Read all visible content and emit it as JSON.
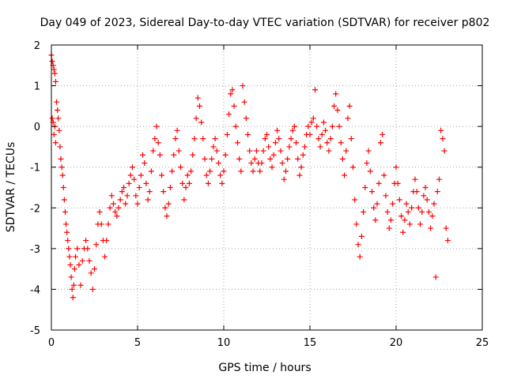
{
  "chart_data": {
    "type": "scatter",
    "title": "Day 049 of 2023, Sidereal Day-to-day VTEC variation (SDTVAR) for receiver p802",
    "xlabel": "GPS time / hours",
    "ylabel": "SDTVAR / TECUs",
    "xlim": [
      0,
      25
    ],
    "ylim": [
      -5,
      2
    ],
    "xticks": [
      0,
      5,
      10,
      15,
      20,
      25
    ],
    "yticks": [
      -5,
      -4,
      -3,
      -2,
      -1,
      0,
      1,
      2
    ],
    "xtick_labels": [
      "0",
      "5",
      "10",
      "15",
      "20",
      "25"
    ],
    "ytick_labels": [
      "-5",
      "-4",
      "-3",
      "-2",
      "-1",
      "0",
      "1",
      "2"
    ],
    "grid": true,
    "marker": "+",
    "colors": {
      "series": "#ff0000",
      "axes": "#000000",
      "grid": "#a0a0a0",
      "background": "#ffffff"
    },
    "series": [
      {
        "name": "SDTVAR",
        "points": [
          [
            0.0,
            1.75
          ],
          [
            0.05,
            1.6
          ],
          [
            0.1,
            1.5
          ],
          [
            0.15,
            1.4
          ],
          [
            0.2,
            1.3
          ],
          [
            0.25,
            1.1
          ],
          [
            0.05,
            0.2
          ],
          [
            0.1,
            0.1
          ],
          [
            0.15,
            -0.2
          ],
          [
            0.2,
            0.0
          ],
          [
            0.25,
            -0.4
          ],
          [
            0.3,
            0.6
          ],
          [
            0.35,
            0.4
          ],
          [
            0.4,
            0.2
          ],
          [
            0.45,
            -0.1
          ],
          [
            0.5,
            -0.5
          ],
          [
            0.55,
            -0.8
          ],
          [
            0.6,
            -1.0
          ],
          [
            0.65,
            -1.2
          ],
          [
            0.7,
            -1.5
          ],
          [
            0.75,
            -1.8
          ],
          [
            0.8,
            -2.1
          ],
          [
            0.85,
            -2.4
          ],
          [
            0.9,
            -2.6
          ],
          [
            0.95,
            -2.8
          ],
          [
            1.0,
            -3.0
          ],
          [
            1.05,
            -3.2
          ],
          [
            1.1,
            -3.4
          ],
          [
            1.15,
            -3.7
          ],
          [
            1.2,
            -4.0
          ],
          [
            1.25,
            -4.2
          ],
          [
            1.3,
            -3.9
          ],
          [
            1.35,
            -3.5
          ],
          [
            1.4,
            -3.2
          ],
          [
            1.5,
            -3.0
          ],
          [
            1.6,
            -3.4
          ],
          [
            1.7,
            -3.9
          ],
          [
            1.8,
            -3.3
          ],
          [
            1.9,
            -3.0
          ],
          [
            2.0,
            -2.8
          ],
          [
            2.1,
            -3.0
          ],
          [
            2.2,
            -3.3
          ],
          [
            2.3,
            -3.6
          ],
          [
            2.4,
            -4.0
          ],
          [
            2.5,
            -3.5
          ],
          [
            2.6,
            -2.9
          ],
          [
            2.7,
            -2.4
          ],
          [
            2.8,
            -2.1
          ],
          [
            2.9,
            -2.4
          ],
          [
            3.0,
            -2.8
          ],
          [
            3.1,
            -3.2
          ],
          [
            3.2,
            -2.8
          ],
          [
            3.3,
            -2.4
          ],
          [
            3.4,
            -2.0
          ],
          [
            3.5,
            -1.7
          ],
          [
            3.6,
            -1.9
          ],
          [
            3.7,
            -2.1
          ],
          [
            3.8,
            -2.2
          ],
          [
            3.9,
            -2.0
          ],
          [
            4.0,
            -1.8
          ],
          [
            4.1,
            -1.6
          ],
          [
            4.2,
            -1.5
          ],
          [
            4.3,
            -1.9
          ],
          [
            4.4,
            -1.7
          ],
          [
            4.5,
            -1.4
          ],
          [
            4.6,
            -1.2
          ],
          [
            4.7,
            -1.0
          ],
          [
            4.8,
            -1.3
          ],
          [
            4.9,
            -1.7
          ],
          [
            5.0,
            -1.9
          ],
          [
            5.1,
            -1.5
          ],
          [
            5.2,
            -1.2
          ],
          [
            5.3,
            -0.7
          ],
          [
            5.4,
            -0.9
          ],
          [
            5.5,
            -1.4
          ],
          [
            5.6,
            -1.8
          ],
          [
            5.7,
            -1.6
          ],
          [
            5.8,
            -1.1
          ],
          [
            5.9,
            -0.6
          ],
          [
            6.0,
            -0.3
          ],
          [
            6.1,
            0.0
          ],
          [
            6.2,
            -0.4
          ],
          [
            6.3,
            -0.7
          ],
          [
            6.4,
            -1.2
          ],
          [
            6.5,
            -1.6
          ],
          [
            6.6,
            -2.0
          ],
          [
            6.7,
            -2.2
          ],
          [
            6.8,
            -1.9
          ],
          [
            6.9,
            -1.5
          ],
          [
            7.0,
            -1.1
          ],
          [
            7.1,
            -0.7
          ],
          [
            7.2,
            -0.3
          ],
          [
            7.3,
            -0.1
          ],
          [
            7.4,
            -0.6
          ],
          [
            7.5,
            -1.0
          ],
          [
            7.6,
            -1.4
          ],
          [
            7.7,
            -1.8
          ],
          [
            7.8,
            -1.5
          ],
          [
            7.9,
            -1.2
          ],
          [
            8.0,
            -1.4
          ],
          [
            8.1,
            -1.1
          ],
          [
            8.2,
            -0.7
          ],
          [
            8.3,
            -0.3
          ],
          [
            8.4,
            0.2
          ],
          [
            8.5,
            0.7
          ],
          [
            8.6,
            0.5
          ],
          [
            8.7,
            0.1
          ],
          [
            8.8,
            -0.3
          ],
          [
            8.9,
            -0.8
          ],
          [
            9.0,
            -1.2
          ],
          [
            9.1,
            -1.4
          ],
          [
            9.2,
            -1.1
          ],
          [
            9.3,
            -0.8
          ],
          [
            9.4,
            -0.5
          ],
          [
            9.5,
            -0.3
          ],
          [
            9.6,
            -0.6
          ],
          [
            9.7,
            -0.9
          ],
          [
            9.8,
            -1.2
          ],
          [
            9.9,
            -1.4
          ],
          [
            10.0,
            -1.1
          ],
          [
            10.1,
            -0.7
          ],
          [
            10.2,
            -0.2
          ],
          [
            10.3,
            0.3
          ],
          [
            10.4,
            0.8
          ],
          [
            10.5,
            0.9
          ],
          [
            10.6,
            0.5
          ],
          [
            10.7,
            0.0
          ],
          [
            10.8,
            -0.4
          ],
          [
            10.9,
            -0.8
          ],
          [
            11.0,
            -1.1
          ],
          [
            11.1,
            1.0
          ],
          [
            11.2,
            0.6
          ],
          [
            11.3,
            0.2
          ],
          [
            11.4,
            -0.2
          ],
          [
            11.5,
            -0.6
          ],
          [
            11.6,
            -0.9
          ],
          [
            11.7,
            -1.1
          ],
          [
            11.8,
            -0.8
          ],
          [
            11.9,
            -0.6
          ],
          [
            12.0,
            -0.9
          ],
          [
            12.1,
            -1.1
          ],
          [
            12.2,
            -0.9
          ],
          [
            12.3,
            -0.6
          ],
          [
            12.4,
            -0.3
          ],
          [
            12.5,
            -0.2
          ],
          [
            12.6,
            -0.5
          ],
          [
            12.7,
            -0.8
          ],
          [
            12.8,
            -1.0
          ],
          [
            12.9,
            -0.7
          ],
          [
            13.0,
            -0.4
          ],
          [
            13.1,
            -0.1
          ],
          [
            13.2,
            -0.3
          ],
          [
            13.3,
            -0.6
          ],
          [
            13.4,
            -0.9
          ],
          [
            13.5,
            -1.3
          ],
          [
            13.6,
            -1.1
          ],
          [
            13.7,
            -0.8
          ],
          [
            13.8,
            -0.5
          ],
          [
            13.9,
            -0.3
          ],
          [
            14.0,
            -0.1
          ],
          [
            14.1,
            0.0
          ],
          [
            14.2,
            -0.4
          ],
          [
            14.3,
            -0.8
          ],
          [
            14.4,
            -1.2
          ],
          [
            14.5,
            -1.0
          ],
          [
            14.6,
            -0.7
          ],
          [
            14.7,
            -0.5
          ],
          [
            14.8,
            -0.2
          ],
          [
            14.9,
            0.0
          ],
          [
            15.0,
            -0.2
          ],
          [
            15.1,
            0.1
          ],
          [
            15.2,
            0.2
          ],
          [
            15.3,
            0.9
          ],
          [
            15.4,
            0.0
          ],
          [
            15.5,
            -0.3
          ],
          [
            15.6,
            -0.5
          ],
          [
            15.7,
            -0.2
          ],
          [
            15.8,
            0.1
          ],
          [
            15.9,
            -0.1
          ],
          [
            16.0,
            -0.4
          ],
          [
            16.1,
            -0.6
          ],
          [
            16.2,
            -0.3
          ],
          [
            16.3,
            0.0
          ],
          [
            16.4,
            0.5
          ],
          [
            16.5,
            0.8
          ],
          [
            16.6,
            0.4
          ],
          [
            16.7,
            0.0
          ],
          [
            16.8,
            -0.4
          ],
          [
            16.9,
            -0.8
          ],
          [
            17.0,
            -1.2
          ],
          [
            17.1,
            -0.6
          ],
          [
            17.2,
            0.2
          ],
          [
            17.3,
            0.5
          ],
          [
            17.4,
            -0.3
          ],
          [
            17.5,
            -1.0
          ],
          [
            17.6,
            -1.8
          ],
          [
            17.7,
            -2.4
          ],
          [
            17.8,
            -2.9
          ],
          [
            17.9,
            -3.2
          ],
          [
            18.0,
            -2.7
          ],
          [
            18.1,
            -2.1
          ],
          [
            18.2,
            -1.5
          ],
          [
            18.3,
            -0.9
          ],
          [
            18.4,
            -0.6
          ],
          [
            18.5,
            -1.1
          ],
          [
            18.6,
            -1.6
          ],
          [
            18.7,
            -2.0
          ],
          [
            18.8,
            -2.3
          ],
          [
            18.9,
            -1.9
          ],
          [
            19.0,
            -1.4
          ],
          [
            19.1,
            -0.4
          ],
          [
            19.2,
            -0.2
          ],
          [
            19.3,
            -1.2
          ],
          [
            19.4,
            -1.7
          ],
          [
            19.5,
            -2.1
          ],
          [
            19.6,
            -2.5
          ],
          [
            19.7,
            -2.3
          ],
          [
            19.8,
            -1.9
          ],
          [
            19.9,
            -1.4
          ],
          [
            20.0,
            -1.0
          ],
          [
            20.1,
            -1.4
          ],
          [
            20.2,
            -1.8
          ],
          [
            20.3,
            -2.2
          ],
          [
            20.4,
            -2.6
          ],
          [
            20.5,
            -2.3
          ],
          [
            20.6,
            -1.9
          ],
          [
            20.7,
            -2.1
          ],
          [
            20.8,
            -2.4
          ],
          [
            20.9,
            -2.0
          ],
          [
            21.0,
            -1.6
          ],
          [
            21.1,
            -1.3
          ],
          [
            21.2,
            -1.6
          ],
          [
            21.3,
            -2.0
          ],
          [
            21.4,
            -2.4
          ],
          [
            21.5,
            -2.1
          ],
          [
            21.6,
            -1.7
          ],
          [
            21.7,
            -1.5
          ],
          [
            21.8,
            -1.8
          ],
          [
            21.9,
            -2.1
          ],
          [
            22.0,
            -2.5
          ],
          [
            22.1,
            -2.2
          ],
          [
            22.2,
            -1.9
          ],
          [
            22.3,
            -3.7
          ],
          [
            22.4,
            -1.6
          ],
          [
            22.5,
            -1.3
          ],
          [
            22.6,
            -0.1
          ],
          [
            22.7,
            -0.3
          ],
          [
            22.8,
            -0.6
          ],
          [
            22.9,
            -2.5
          ],
          [
            23.0,
            -2.8
          ]
        ]
      }
    ]
  }
}
